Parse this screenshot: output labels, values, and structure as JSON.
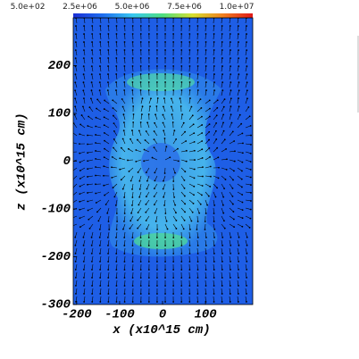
{
  "chart_data": {
    "type": "vector-field",
    "xlabel": "x (x10^15 cm)",
    "ylabel": "z (x10^15 cm)",
    "xlim": [
      -208,
      210
    ],
    "ylim": [
      -300,
      300
    ],
    "xticks": [
      -200,
      -100,
      0,
      100
    ],
    "yticks": [
      200,
      100,
      0,
      -100,
      -200,
      -300
    ],
    "colorbar": {
      "colors": [
        "#1b2fd6",
        "#1f6ff0",
        "#38c8f0",
        "#4fe080",
        "#d8e030",
        "#f08020",
        "#e01818"
      ],
      "lim": [
        500,
        10000000
      ],
      "ticks": [
        {
          "value": 500,
          "label": "5.0e+02"
        },
        {
          "value": 2500000,
          "label": "2.5e+06"
        },
        {
          "value": 5000000,
          "label": "5.0e+06"
        },
        {
          "value": 7500000,
          "label": "7.5e+06"
        },
        {
          "value": 10000000,
          "label": "1.0e+07"
        }
      ]
    },
    "background_color": "#1e5ee6"
  }
}
